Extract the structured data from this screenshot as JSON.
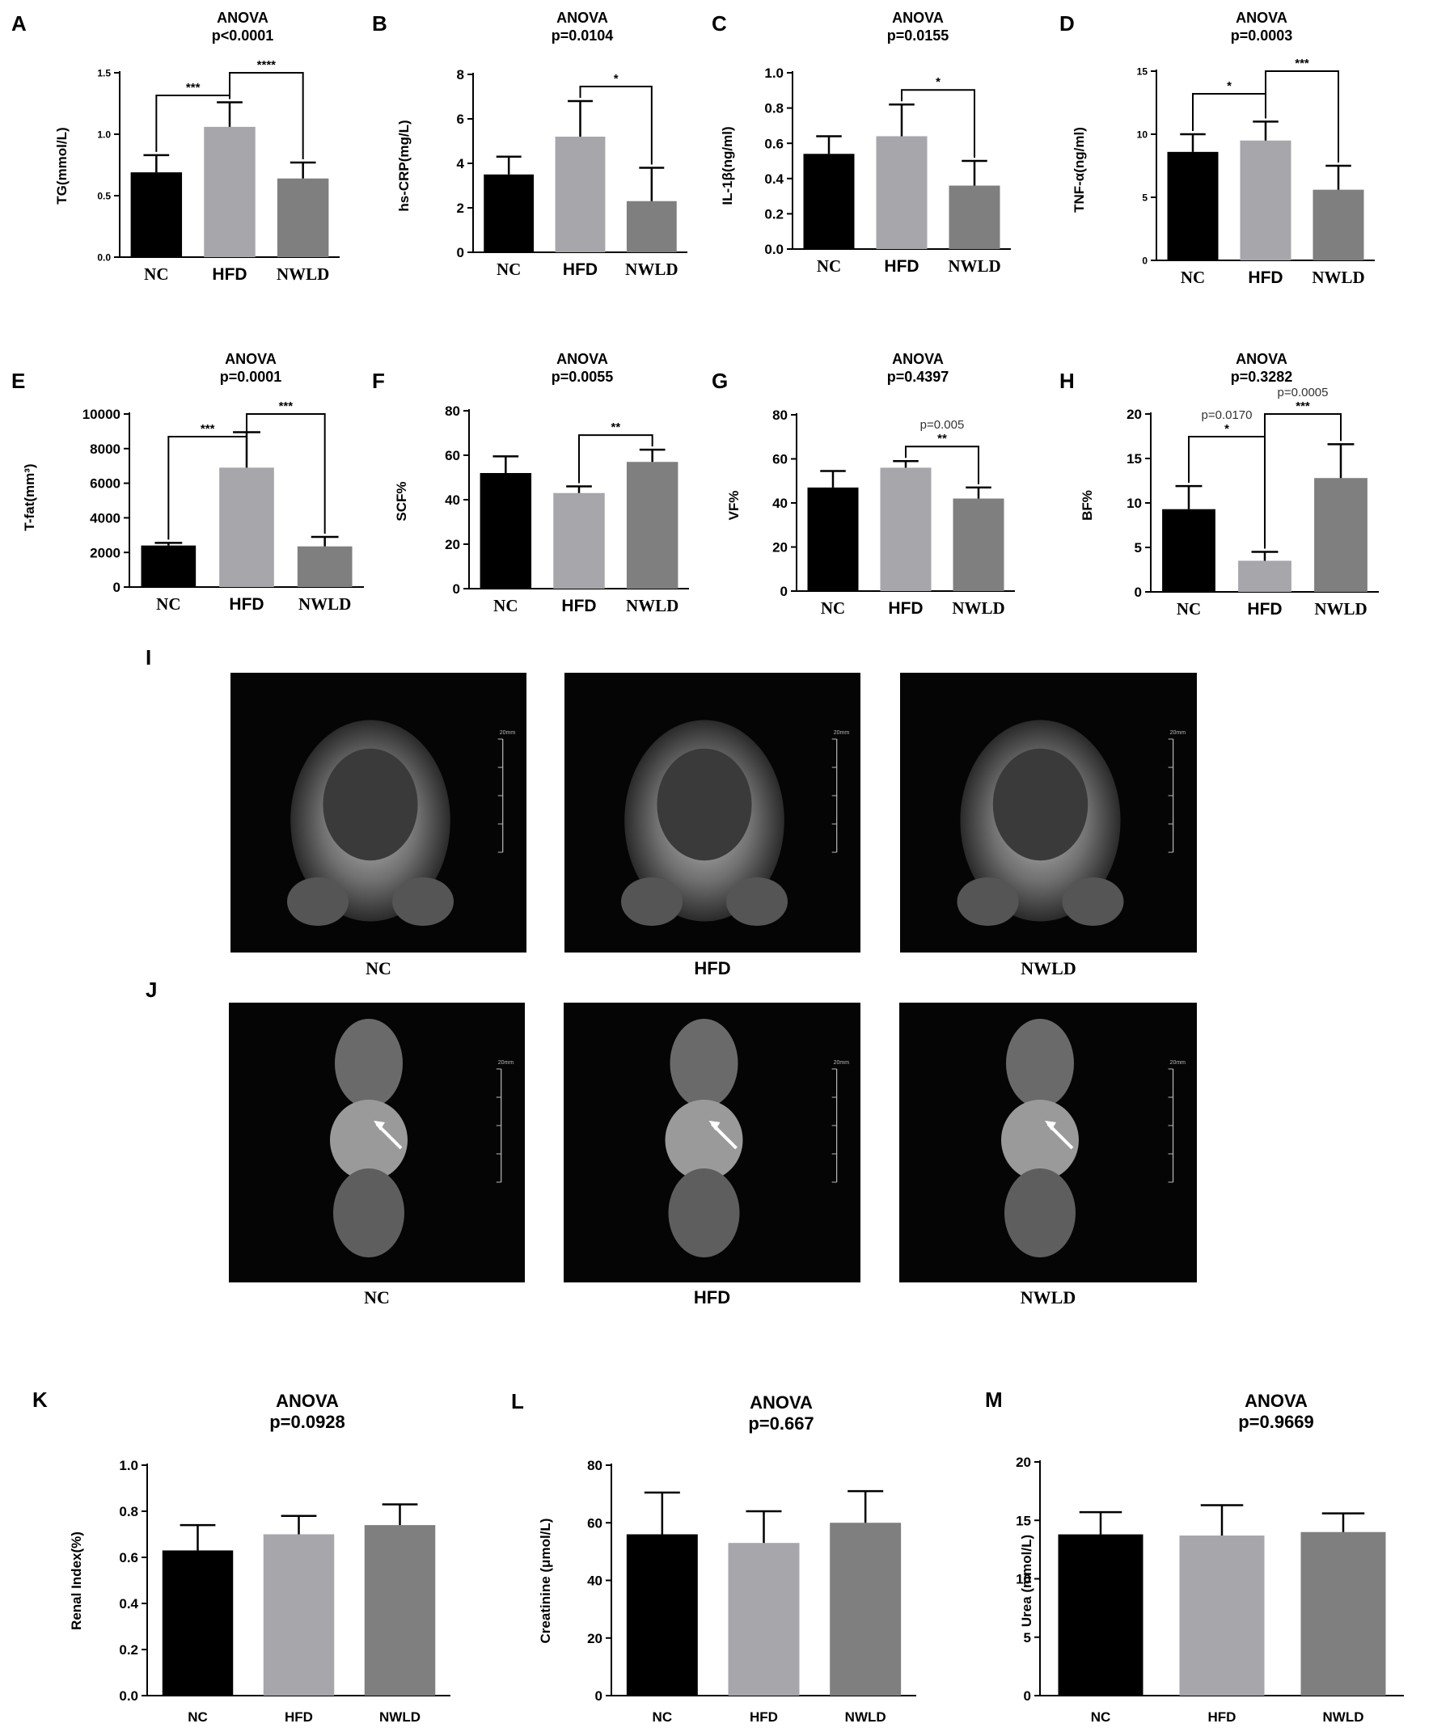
{
  "groups": [
    "NC",
    "HFD",
    "NWLD"
  ],
  "colors": {
    "NC": "#000000",
    "HFD": "#a6a6ab",
    "NWLD": "#7f7f7f"
  },
  "chart_data": [
    {
      "id": "A",
      "type": "bar",
      "title": "ANOVA",
      "subtitle": "p<0.0001",
      "ylabel": "TG(mmol/L)",
      "categories": [
        "NC",
        "HFD",
        "NWLD"
      ],
      "values": [
        0.69,
        1.06,
        0.64
      ],
      "errors": [
        0.14,
        0.2,
        0.13
      ],
      "ylim": [
        0,
        1.5
      ],
      "yticks": [
        "0.0",
        "0.5",
        "1.0",
        "1.5"
      ],
      "annotations": [
        {
          "from": 0,
          "to": 1,
          "label": "***"
        },
        {
          "from": 1,
          "to": 2,
          "label": "****"
        }
      ]
    },
    {
      "id": "B",
      "type": "bar",
      "title": "ANOVA",
      "subtitle": "p=0.0104",
      "ylabel": "hs-CRP(mg/L)",
      "categories": [
        "NC",
        "HFD",
        "NWLD"
      ],
      "values": [
        3.5,
        5.2,
        2.3
      ],
      "errors": [
        0.8,
        1.6,
        1.5
      ],
      "ylim": [
        0,
        8
      ],
      "yticks": [
        "0",
        "2",
        "4",
        "6",
        "8"
      ],
      "annotations": [
        {
          "from": 1,
          "to": 2,
          "label": "*"
        }
      ]
    },
    {
      "id": "C",
      "type": "bar",
      "title": "ANOVA",
      "subtitle": "p=0.0155",
      "ylabel": "IL-1β(ng/ml)",
      "categories": [
        "NC",
        "HFD",
        "NWLD"
      ],
      "values": [
        0.54,
        0.64,
        0.36
      ],
      "errors": [
        0.1,
        0.18,
        0.14
      ],
      "ylim": [
        0,
        1.0
      ],
      "yticks": [
        "0.0",
        "0.2",
        "0.4",
        "0.6",
        "0.8",
        "1.0"
      ],
      "annotations": [
        {
          "from": 1,
          "to": 2,
          "label": "*"
        }
      ]
    },
    {
      "id": "D",
      "type": "bar",
      "title": "ANOVA",
      "subtitle": "p=0.0003",
      "ylabel": "TNF-α(ng/ml)",
      "categories": [
        "NC",
        "HFD",
        "NWLD"
      ],
      "values": [
        8.6,
        9.5,
        5.6
      ],
      "errors": [
        1.4,
        1.5,
        1.9
      ],
      "ylim": [
        0,
        15
      ],
      "yticks": [
        "0",
        "5",
        "10",
        "15"
      ],
      "annotations": [
        {
          "from": 0,
          "to": 1,
          "label": "*"
        },
        {
          "from": 1,
          "to": 2,
          "label": "***"
        }
      ]
    },
    {
      "id": "E",
      "type": "bar",
      "title": "ANOVA",
      "subtitle": "p=0.0001",
      "ylabel": "T-fat(mm³)",
      "categories": [
        "NC",
        "HFD",
        "NWLD"
      ],
      "values": [
        2400,
        6900,
        2350
      ],
      "errors": [
        150,
        2050,
        550
      ],
      "ylim": [
        0,
        10000
      ],
      "yticks": [
        "0",
        "2000",
        "4000",
        "6000",
        "8000",
        "10000"
      ],
      "annotations": [
        {
          "from": 0,
          "to": 1,
          "label": "***"
        },
        {
          "from": 1,
          "to": 2,
          "label": "***"
        }
      ]
    },
    {
      "id": "F",
      "type": "bar",
      "title": "ANOVA",
      "subtitle": "p=0.0055",
      "ylabel": "SCF%",
      "categories": [
        "NC",
        "HFD",
        "NWLD"
      ],
      "values": [
        52,
        43,
        57
      ],
      "errors": [
        7.5,
        3,
        5.5
      ],
      "ylim": [
        0,
        80
      ],
      "yticks": [
        "0",
        "20",
        "40",
        "60",
        "80"
      ],
      "annotations": [
        {
          "from": 1,
          "to": 2,
          "label": "**"
        }
      ]
    },
    {
      "id": "G",
      "type": "bar",
      "title": "ANOVA",
      "subtitle": "p=0.4397",
      "ylabel": "VF%",
      "categories": [
        "NC",
        "HFD",
        "NWLD"
      ],
      "values": [
        47,
        56,
        42
      ],
      "errors": [
        7.5,
        3,
        5
      ],
      "ylim": [
        0,
        80
      ],
      "yticks": [
        "0",
        "20",
        "40",
        "60",
        "80"
      ],
      "annotations": [
        {
          "from": 1,
          "to": 2,
          "label": "**",
          "note": "p=0.005"
        }
      ]
    },
    {
      "id": "H",
      "type": "bar",
      "title": "ANOVA",
      "subtitle": "p=0.3282",
      "ylabel": "BF%",
      "categories": [
        "NC",
        "HFD",
        "NWLD"
      ],
      "values": [
        9.3,
        3.5,
        12.8
      ],
      "errors": [
        2.6,
        1.0,
        3.8
      ],
      "ylim": [
        0,
        20
      ],
      "yticks": [
        "0",
        "5",
        "10",
        "15",
        "20"
      ],
      "annotations": [
        {
          "from": 0,
          "to": 1,
          "label": "*",
          "note": "p=0.0170"
        },
        {
          "from": 1,
          "to": 2,
          "label": "***",
          "note": "p=0.0005"
        }
      ]
    },
    {
      "id": "K",
      "type": "bar",
      "title": "ANOVA",
      "subtitle": "p=0.0928",
      "ylabel": "Renal Index(%)",
      "categories": [
        "NC",
        "HFD",
        "NWLD"
      ],
      "values": [
        0.63,
        0.7,
        0.74
      ],
      "errors": [
        0.11,
        0.08,
        0.09
      ],
      "ylim": [
        0,
        1.0
      ],
      "yticks": [
        "0.0",
        "0.2",
        "0.4",
        "0.6",
        "0.8",
        "1.0"
      ],
      "annotations": []
    },
    {
      "id": "L",
      "type": "bar",
      "title": "ANOVA",
      "subtitle": "p=0.667",
      "ylabel": "Creatinine (μmol/L)",
      "categories": [
        "NC",
        "HFD",
        "NWLD"
      ],
      "values": [
        56,
        53,
        60
      ],
      "errors": [
        14.5,
        11,
        11
      ],
      "ylim": [
        0,
        80
      ],
      "yticks": [
        "0",
        "20",
        "40",
        "60",
        "80"
      ],
      "annotations": []
    },
    {
      "id": "M",
      "type": "bar",
      "title": "ANOVA",
      "subtitle": "p=0.9669",
      "ylabel": "Urea (mmol/L)",
      "categories": [
        "NC",
        "HFD",
        "NWLD"
      ],
      "values": [
        13.8,
        13.7,
        14.0
      ],
      "errors": [
        1.9,
        2.6,
        1.6
      ],
      "ylim": [
        0,
        20
      ],
      "yticks": [
        "0",
        "5",
        "10",
        "15",
        "20"
      ],
      "annotations": []
    }
  ],
  "mri_panels": [
    {
      "id": "I",
      "captions": [
        "NC",
        "HFD",
        "NWLD"
      ],
      "scale_label": "20mm"
    },
    {
      "id": "J",
      "captions": [
        "NC",
        "HFD",
        "NWLD"
      ],
      "scale_label": "20mm"
    }
  ]
}
